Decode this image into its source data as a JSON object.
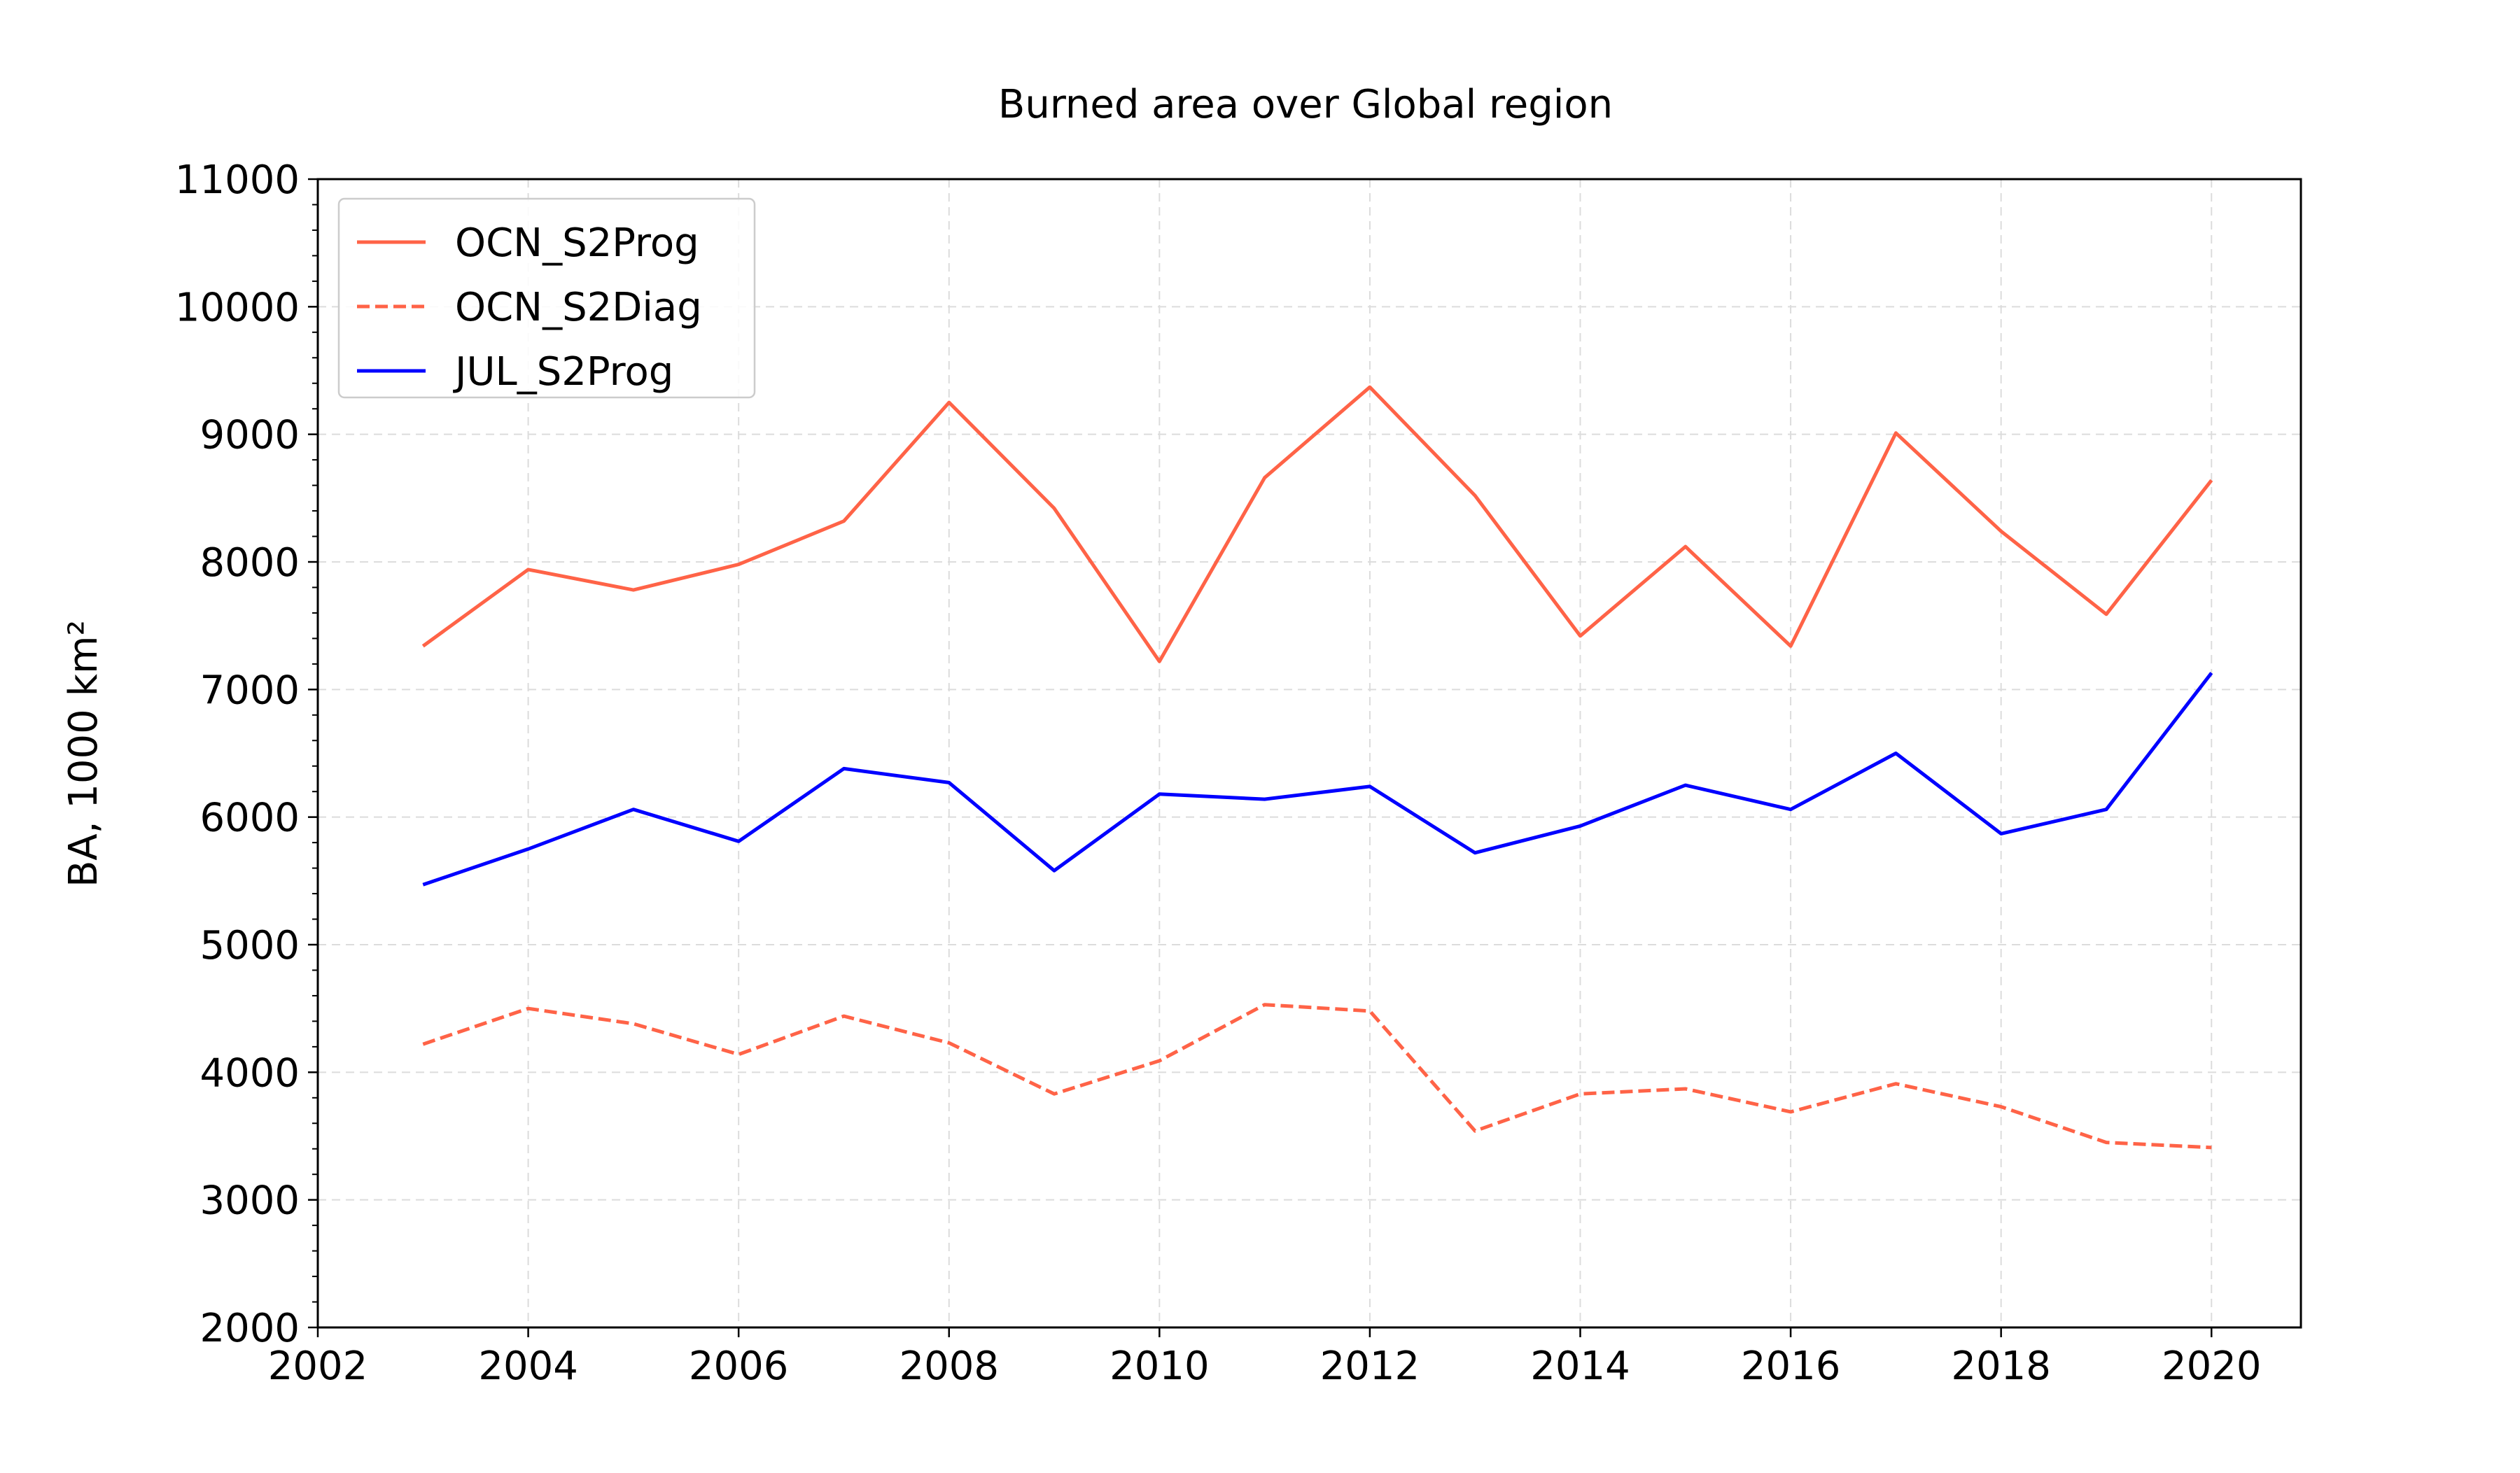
{
  "chart_data": {
    "type": "line",
    "title": "Burned area over Global region",
    "xlabel": "",
    "ylabel": "BA, 1000 km²",
    "xlim": [
      2002,
      2020.85
    ],
    "ylim": [
      2000,
      11000
    ],
    "xticks": [
      2002,
      2004,
      2006,
      2008,
      2010,
      2012,
      2014,
      2016,
      2018,
      2020
    ],
    "yticks": [
      2000,
      3000,
      4000,
      5000,
      6000,
      7000,
      8000,
      9000,
      10000,
      11000
    ],
    "x": [
      2003,
      2004,
      2005,
      2006,
      2007,
      2008,
      2009,
      2010,
      2011,
      2012,
      2013,
      2014,
      2015,
      2016,
      2017,
      2018,
      2019,
      2020
    ],
    "grid": true,
    "legend_position": "top-left",
    "series": [
      {
        "name": "OCN_S2Prog",
        "color": "#ff6347",
        "dash": "solid",
        "values": [
          7340,
          7940,
          7780,
          7980,
          8320,
          9250,
          8420,
          7220,
          8660,
          9370,
          8520,
          7420,
          8120,
          7340,
          9010,
          8240,
          7590,
          8640
        ]
      },
      {
        "name": "OCN_S2Diag",
        "color": "#ff6347",
        "dash": "dashed",
        "values": [
          4220,
          4500,
          4380,
          4140,
          4440,
          4230,
          3830,
          4090,
          4530,
          4480,
          3540,
          3830,
          3870,
          3690,
          3910,
          3730,
          3450,
          3410
        ]
      },
      {
        "name": "JUL_S2Prog",
        "color": "#0000ff",
        "dash": "solid",
        "values": [
          5470,
          5750,
          6060,
          5810,
          6380,
          6270,
          5580,
          6180,
          6140,
          6240,
          5720,
          5930,
          6250,
          6060,
          6500,
          5870,
          6060,
          7130
        ]
      }
    ]
  }
}
